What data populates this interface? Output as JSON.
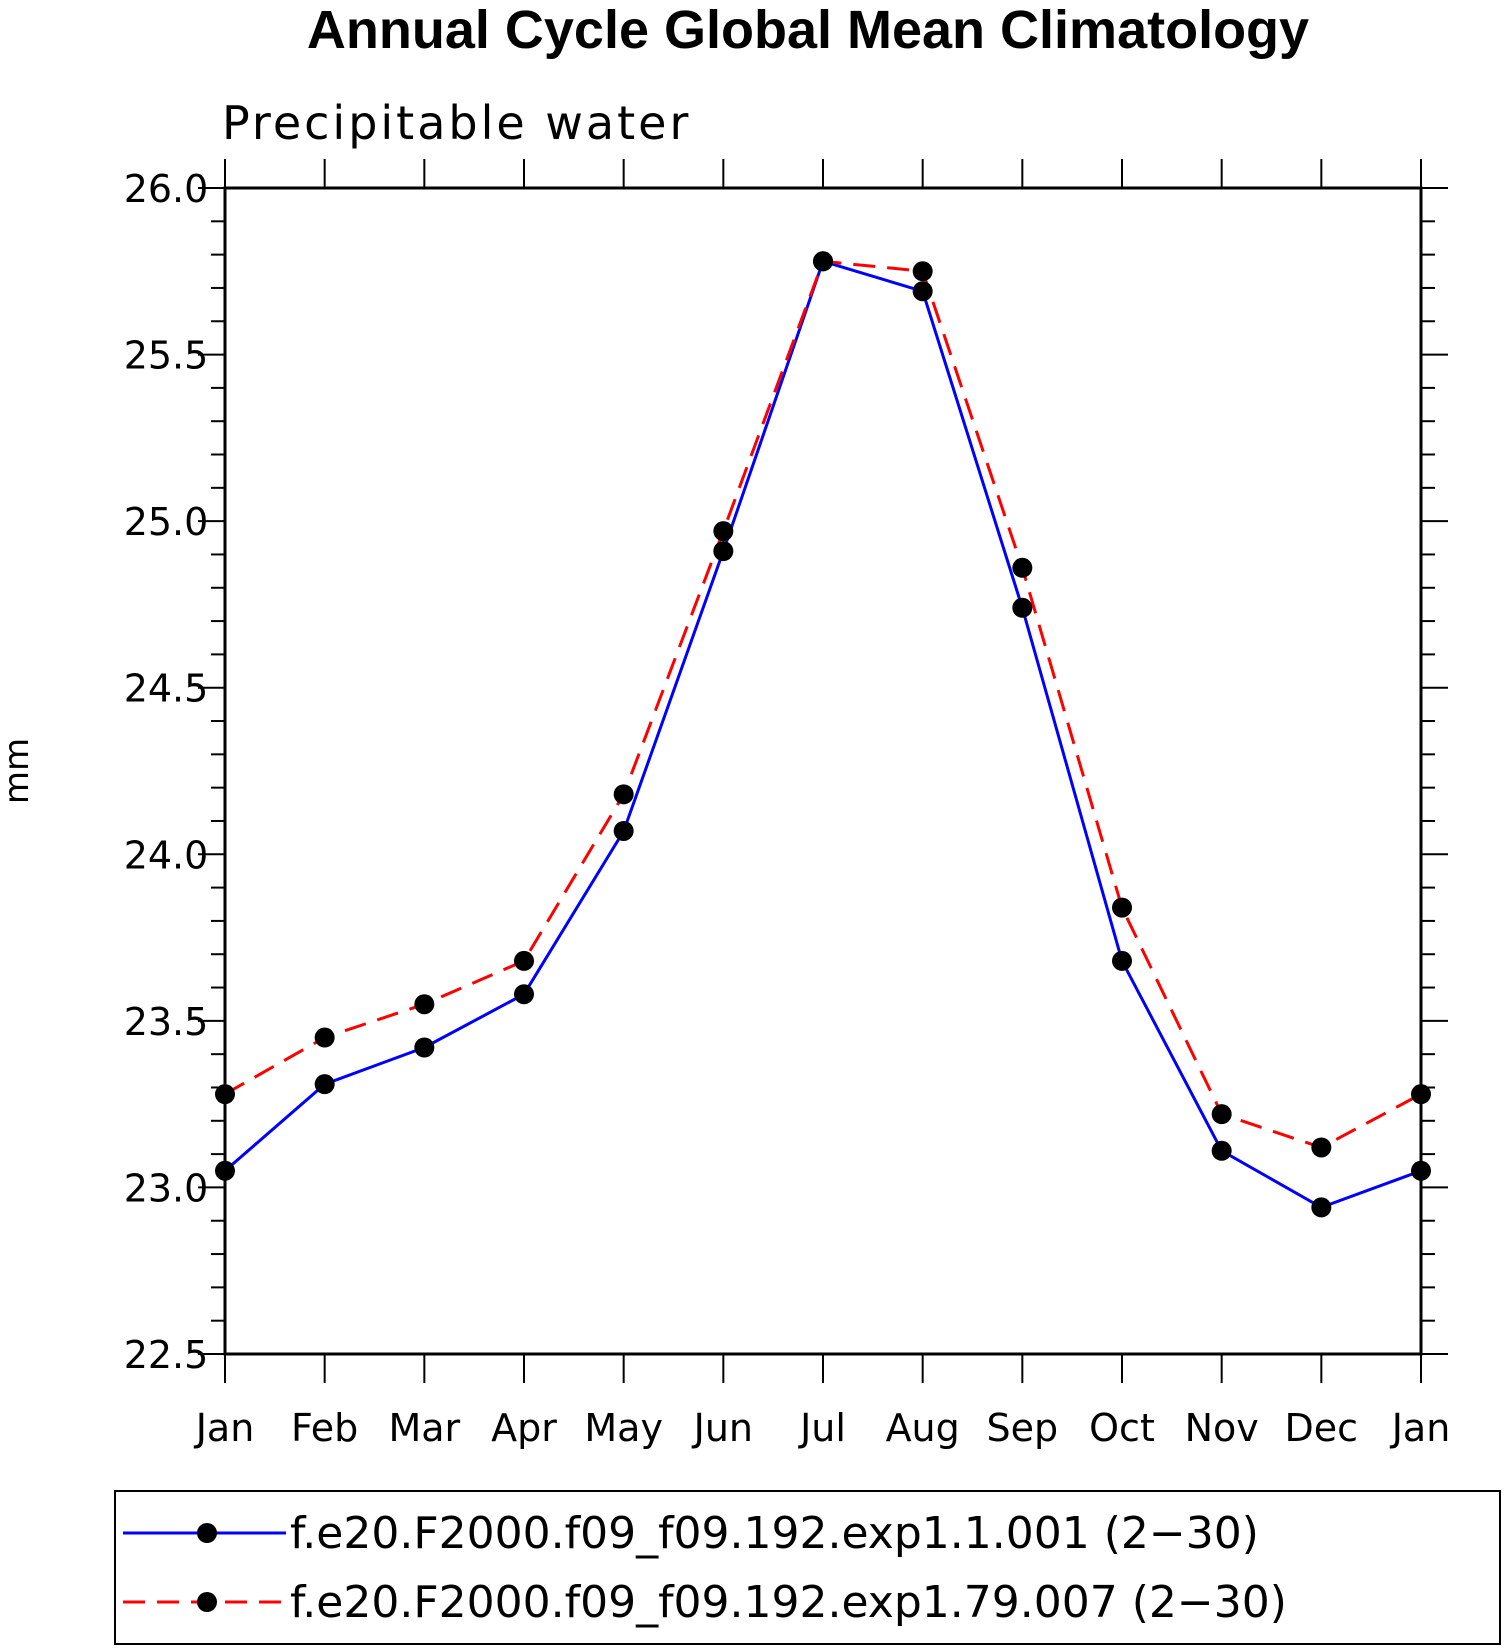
{
  "chart_data": {
    "type": "line",
    "title": "Annual Cycle Global Mean Climatology",
    "subtitle": "Precipitable water",
    "xlabel": "",
    "ylabel": "mm",
    "categories": [
      "Jan",
      "Feb",
      "Mar",
      "Apr",
      "May",
      "Jun",
      "Jul",
      "Aug",
      "Sep",
      "Oct",
      "Nov",
      "Dec",
      "Jan"
    ],
    "ylim": [
      22.5,
      26.0
    ],
    "yticks": [
      "22.5",
      "23.0",
      "23.5",
      "24.0",
      "24.5",
      "25.0",
      "25.5",
      "26.0"
    ],
    "grid": false,
    "legend_position": "bottom",
    "series": [
      {
        "name": "f.e20.F2000.f09_f09.192.exp1.1.001 (2−30)",
        "color": "#0000ff",
        "dash": "solid",
        "values": [
          23.05,
          23.31,
          23.42,
          23.58,
          24.07,
          24.91,
          25.78,
          25.69,
          24.74,
          23.68,
          23.11,
          22.94,
          23.05
        ]
      },
      {
        "name": "f.e20.F2000.f09_f09.192.exp1.79.007 (2−30)",
        "color": "#ff0000",
        "dash": "dashed",
        "values": [
          23.28,
          23.45,
          23.55,
          23.68,
          24.18,
          24.97,
          25.78,
          25.75,
          24.86,
          23.84,
          23.22,
          23.12,
          23.28
        ]
      }
    ]
  }
}
